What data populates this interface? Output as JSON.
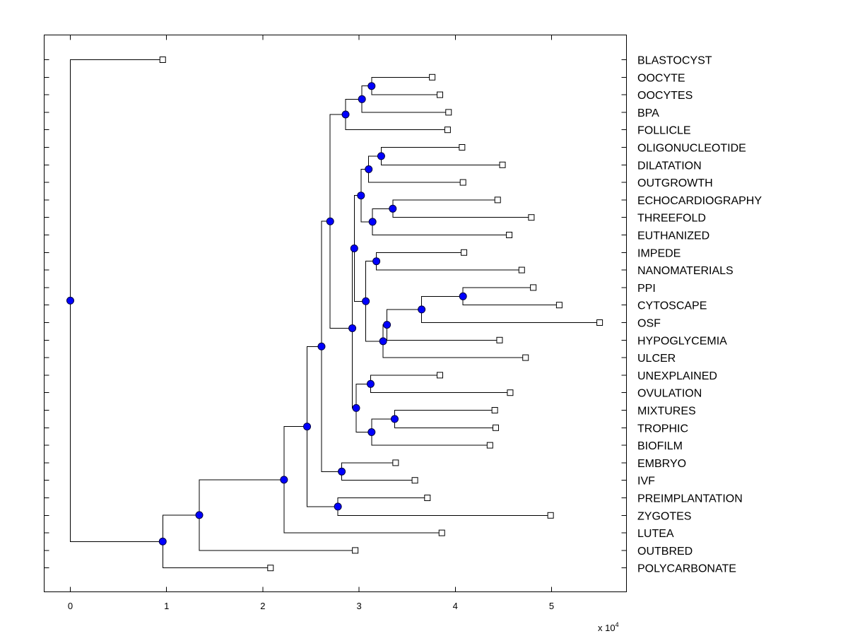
{
  "chart_data": {
    "type": "dendrogram",
    "title": "",
    "xlim": [
      -0.27,
      5.77
    ],
    "xticks": [
      "0",
      "1",
      "2",
      "3",
      "4",
      "5"
    ],
    "x_multiplier_base": "x 10",
    "x_multiplier_exp": "4",
    "leaf_marker_color": "#ffffff",
    "node_marker_color": "#0000ff",
    "leaves": [
      {
        "label": "BLASTOCYST",
        "x": 0.96
      },
      {
        "label": "OOCYTE",
        "x": 3.76
      },
      {
        "label": "OOCYTES",
        "x": 3.84
      },
      {
        "label": "BPA",
        "x": 3.93
      },
      {
        "label": "FOLLICLE",
        "x": 3.92
      },
      {
        "label": "OLIGONUCLEOTIDE",
        "x": 4.07
      },
      {
        "label": "DILATATION",
        "x": 4.49
      },
      {
        "label": "OUTGROWTH",
        "x": 4.08
      },
      {
        "label": "ECHOCARDIOGRAPHY",
        "x": 4.44
      },
      {
        "label": "THREEFOLD",
        "x": 4.79
      },
      {
        "label": "EUTHANIZED",
        "x": 4.56
      },
      {
        "label": "IMPEDE",
        "x": 4.09
      },
      {
        "label": "NANOMATERIALS",
        "x": 4.69
      },
      {
        "label": "PPI",
        "x": 4.81
      },
      {
        "label": "CYTOSCAPE",
        "x": 5.08
      },
      {
        "label": "OSF",
        "x": 5.5
      },
      {
        "label": "HYPOGLYCEMIA",
        "x": 4.46
      },
      {
        "label": "ULCER",
        "x": 4.73
      },
      {
        "label": "UNEXPLAINED",
        "x": 3.84
      },
      {
        "label": "OVULATION",
        "x": 4.57
      },
      {
        "label": "MIXTURES",
        "x": 4.41
      },
      {
        "label": "TROPHIC",
        "x": 4.42
      },
      {
        "label": "BIOFILM",
        "x": 4.36
      },
      {
        "label": "EMBRYO",
        "x": 3.38
      },
      {
        "label": "IVF",
        "x": 3.58
      },
      {
        "label": "PREIMPLANTATION",
        "x": 3.71
      },
      {
        "label": "ZYGOTES",
        "x": 4.99
      },
      {
        "label": "LUTEA",
        "x": 3.86
      },
      {
        "label": "OUTBRED",
        "x": 2.96
      },
      {
        "label": "POLYCARBONATE",
        "x": 2.08
      }
    ],
    "merges": [
      {
        "id": "n1",
        "children": [
          1,
          2
        ],
        "x": 3.13
      },
      {
        "id": "n2",
        "children": [
          "n1",
          3
        ],
        "x": 3.03
      },
      {
        "id": "n3",
        "children": [
          "n2",
          4
        ],
        "x": 2.86
      },
      {
        "id": "n4",
        "children": [
          5,
          6
        ],
        "x": 3.23
      },
      {
        "id": "n5",
        "children": [
          "n4",
          7
        ],
        "x": 3.1
      },
      {
        "id": "n6",
        "children": [
          8,
          9
        ],
        "x": 3.35
      },
      {
        "id": "n7",
        "children": [
          "n6",
          10
        ],
        "x": 3.14
      },
      {
        "id": "n8",
        "children": [
          "n5",
          "n7"
        ],
        "x": 3.02
      },
      {
        "id": "n9",
        "children": [
          11,
          12
        ],
        "x": 3.18
      },
      {
        "id": "n10",
        "children": [
          13,
          14
        ],
        "x": 4.08
      },
      {
        "id": "n11",
        "children": [
          "n10",
          15
        ],
        "x": 3.65
      },
      {
        "id": "n12",
        "children": [
          "n11",
          16
        ],
        "x": 3.29
      },
      {
        "id": "n13",
        "children": [
          "n12",
          17
        ],
        "x": 3.25
      },
      {
        "id": "n14",
        "children": [
          "n9",
          "n13"
        ],
        "x": 3.07
      },
      {
        "id": "n15",
        "children": [
          "n8",
          "n14"
        ],
        "x": 2.95
      },
      {
        "id": "n16",
        "children": [
          18,
          19
        ],
        "x": 3.12
      },
      {
        "id": "n17",
        "children": [
          20,
          21
        ],
        "x": 3.37
      },
      {
        "id": "n18",
        "children": [
          "n17",
          22
        ],
        "x": 3.13
      },
      {
        "id": "n19",
        "children": [
          "n16",
          "n18"
        ],
        "x": 2.97
      },
      {
        "id": "n20",
        "children": [
          "n15",
          "n19"
        ],
        "x": 2.93
      },
      {
        "id": "n21",
        "children": [
          "n3",
          "n20"
        ],
        "x": 2.7
      },
      {
        "id": "n22",
        "children": [
          23,
          24
        ],
        "x": 2.82
      },
      {
        "id": "n23",
        "children": [
          "n21",
          "n22"
        ],
        "x": 2.61
      },
      {
        "id": "n24",
        "children": [
          25,
          26
        ],
        "x": 2.78
      },
      {
        "id": "n25",
        "children": [
          "n23",
          "n24"
        ],
        "x": 2.46
      },
      {
        "id": "n26",
        "children": [
          "n25",
          27
        ],
        "x": 2.22
      },
      {
        "id": "n27",
        "children": [
          "n26",
          28
        ],
        "x": 1.34
      },
      {
        "id": "n28",
        "children": [
          "n27",
          29
        ],
        "x": 0.96
      },
      {
        "id": "n29",
        "children": [
          0,
          "n28"
        ],
        "x": 0.0
      }
    ]
  }
}
